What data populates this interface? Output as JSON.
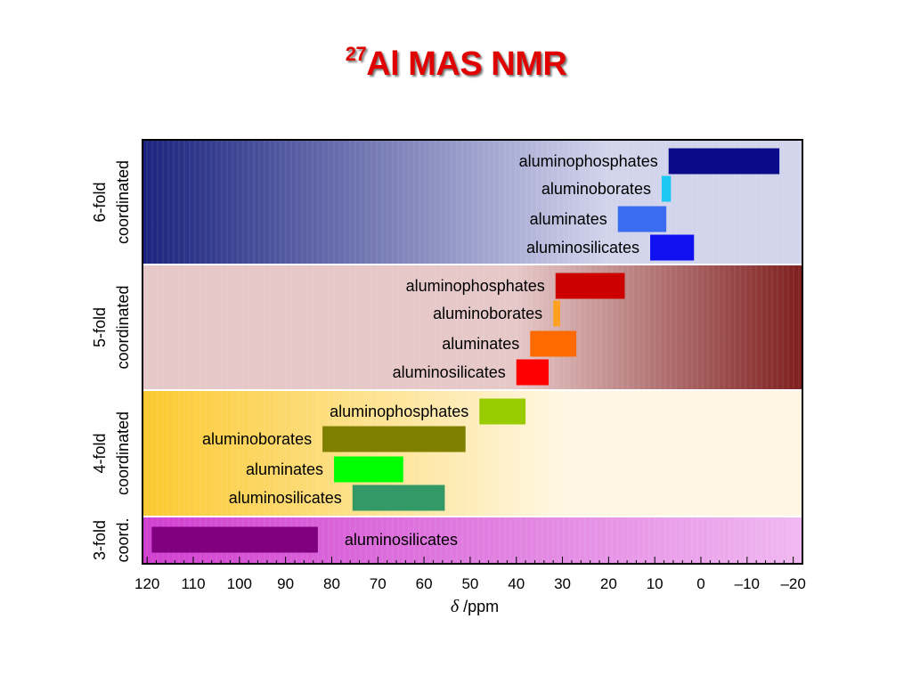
{
  "title": {
    "sup": "27",
    "main": "Al MAS NMR"
  },
  "chart_data": {
    "type": "bar",
    "orientation": "horizontal-range",
    "x_axis": {
      "label_symbol": "δ",
      "label_unit": "/ppm",
      "range": [
        121,
        -22
      ],
      "reversed": true,
      "ticks": [
        120,
        110,
        100,
        90,
        80,
        70,
        60,
        50,
        40,
        30,
        20,
        10,
        0,
        -10,
        -20
      ],
      "tick_labels": [
        "120",
        "110",
        "100",
        "90",
        "80",
        "70",
        "60",
        "50",
        "40",
        "30",
        "20",
        "10",
        "0",
        "–10",
        "–20"
      ]
    },
    "bands": [
      {
        "lines": [
          "6-fold",
          "coordinated"
        ],
        "gradient": [
          "#1a237e",
          "#d2d4ec"
        ],
        "gradient_fade_until_ppm": 20,
        "bars": [
          {
            "label": "aluminophosphates",
            "from": 7,
            "to": -17,
            "color": "#0a0a8a"
          },
          {
            "label": "aluminoborates",
            "from": 8.5,
            "to": 6.5,
            "color": "#1ec8f5"
          },
          {
            "label": "aluminates",
            "from": 18,
            "to": 7.5,
            "color": "#3a6cf0"
          },
          {
            "label": "aluminosilicates",
            "from": 11,
            "to": 1.5,
            "color": "#1010f0"
          }
        ]
      },
      {
        "lines": [
          "5-fold",
          "coordinated"
        ],
        "gradient": [
          "#e6c8c8",
          "#7e1e1e"
        ],
        "gradient_start_ppm": 40,
        "bars": [
          {
            "label": "aluminophosphates",
            "from": 31.5,
            "to": 16.5,
            "color": "#cc0000"
          },
          {
            "label": "aluminoborates",
            "from": 32,
            "to": 30.5,
            "color": "#ffa020"
          },
          {
            "label": "aluminates",
            "from": 37,
            "to": 27,
            "color": "#ff6a00"
          },
          {
            "label": "aluminosilicates",
            "from": 40,
            "to": 33,
            "color": "#ff0000"
          }
        ]
      },
      {
        "lines": [
          "4-fold",
          "coordinated"
        ],
        "gradient": [
          "#fbc92e",
          "#fff7e2"
        ],
        "gradient_fade_until_ppm": 30,
        "bars": [
          {
            "label": "aluminophosphates",
            "from": 48,
            "to": 38,
            "color": "#99cc00"
          },
          {
            "label": "aluminoborates",
            "from": 82,
            "to": 51,
            "color": "#808000"
          },
          {
            "label": "aluminates",
            "from": 79.5,
            "to": 64.5,
            "color": "#00ff00"
          },
          {
            "label": "aluminosilicates",
            "from": 75.5,
            "to": 55.5,
            "color": "#339966"
          }
        ]
      },
      {
        "lines": [
          "3-fold",
          "coord."
        ],
        "gradient": [
          "#d040d0",
          "#f0b8f0"
        ],
        "bars": [
          {
            "label": "aluminosilicates",
            "from": 119,
            "to": 83,
            "color": "#800080",
            "label_side": "right"
          }
        ]
      }
    ]
  }
}
